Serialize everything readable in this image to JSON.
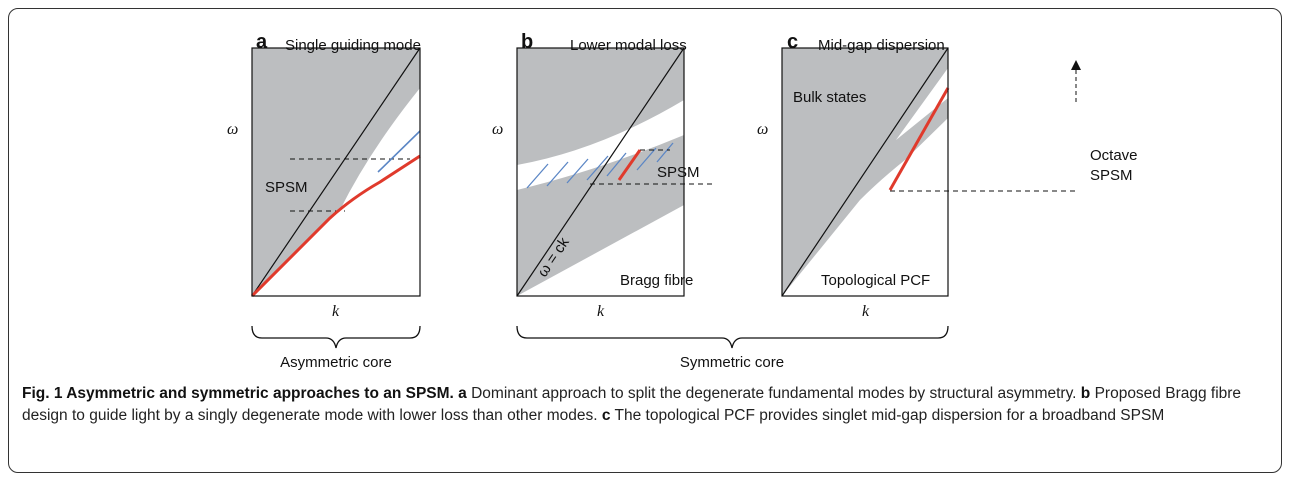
{
  "panels": [
    {
      "letter": "a",
      "title": "Single guiding mode",
      "y_axis": "ω",
      "x_axis": "k",
      "labels": [
        "SPSM"
      ]
    },
    {
      "letter": "b",
      "title": "Lower modal loss",
      "y_axis": "ω",
      "x_axis": "k",
      "labels": [
        "SPSM",
        "Bragg fibre",
        "ω = ck"
      ]
    },
    {
      "letter": "c",
      "title": "Mid-gap dispersion",
      "y_axis": "ω",
      "x_axis": "k",
      "labels": [
        "Bulk states",
        "Topological PCF",
        "Octave",
        "SPSM"
      ]
    }
  ],
  "braces": [
    "Asymmetric core",
    "Symmetric core"
  ],
  "caption": {
    "title": "Fig. 1 Asymmetric and symmetric approaches to an SPSM.",
    "parts": [
      {
        "letter": "a",
        "text": " Dominant approach to split the degenerate fundamental modes by structural asymmetry."
      },
      {
        "letter": "b",
        "text": " Proposed Bragg fibre design to guide light by a singly degenerate mode with lower loss than other modes."
      },
      {
        "letter": "c",
        "text": " The topological PCF provides singlet mid-gap dispersion for a broadband SPSM"
      }
    ]
  }
}
